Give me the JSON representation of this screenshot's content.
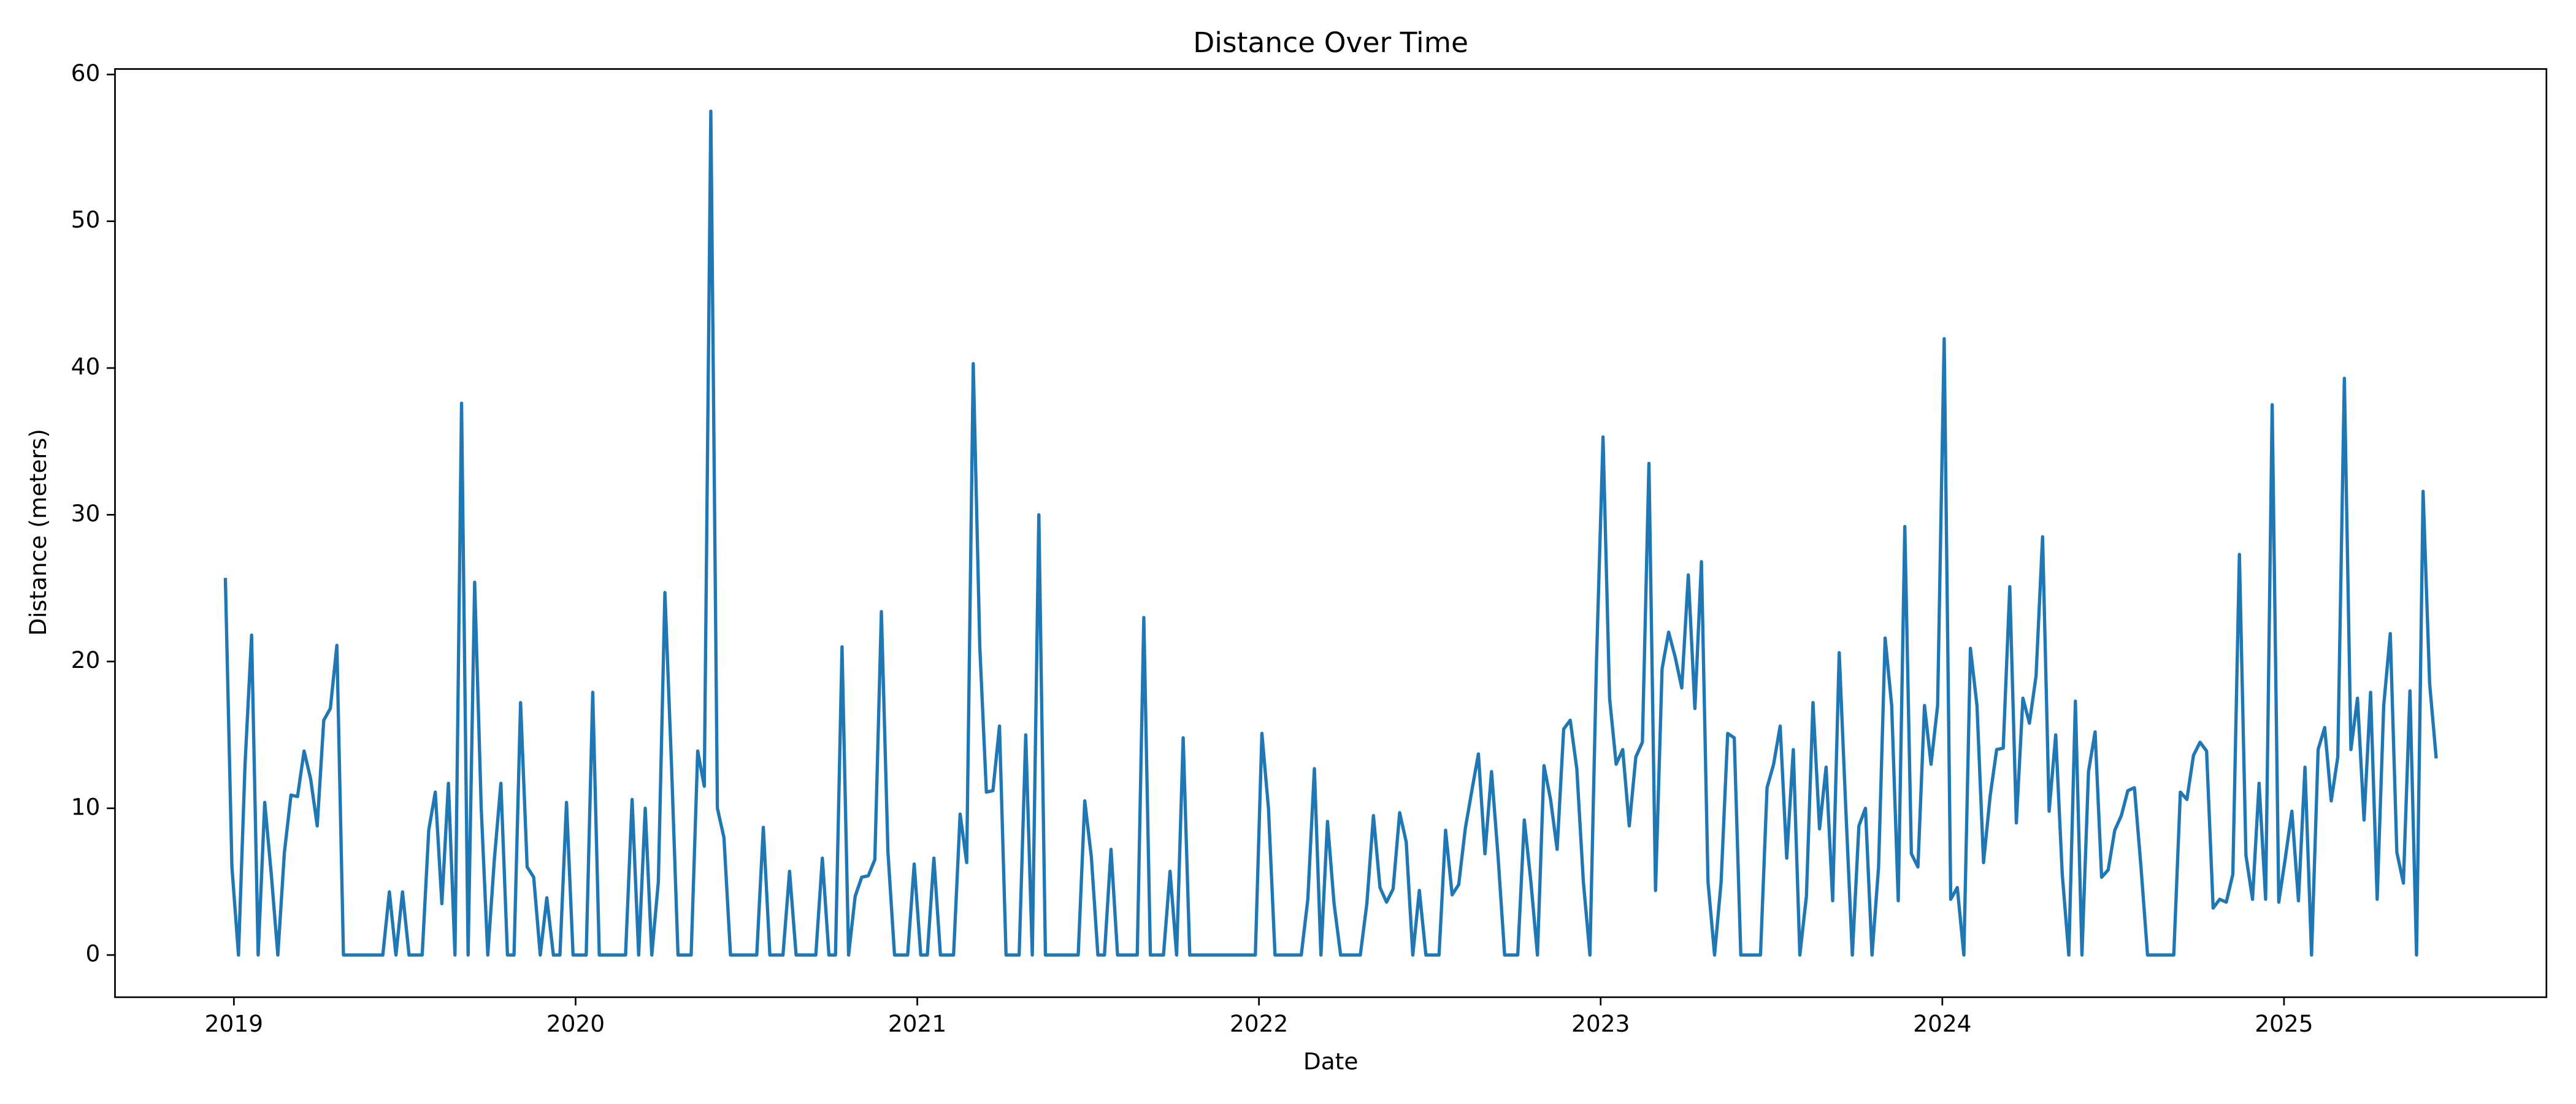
{
  "chart_data": {
    "type": "line",
    "title": "Distance Over Time",
    "x_label": "Date",
    "y_label": "Distance (meters)",
    "color": "#1f77b4",
    "x": [
      2018.975,
      2018.9942,
      2019.0134,
      2019.0326,
      2019.0518,
      2019.071,
      2019.0902,
      2019.1094,
      2019.1286,
      2019.1478,
      2019.167,
      2019.1862,
      2019.2054,
      2019.2246,
      2019.2438,
      2019.263,
      2019.2822,
      2019.3014,
      2019.3206,
      2019.3398,
      2019.359,
      2019.3782,
      2019.3974,
      2019.4166,
      2019.4358,
      2019.455,
      2019.4742,
      2019.4934,
      2019.5126,
      2019.5318,
      2019.551,
      2019.5702,
      2019.5894,
      2019.6086,
      2019.6278,
      2019.647,
      2019.6662,
      2019.6854,
      2019.7046,
      2019.7238,
      2019.743,
      2019.7622,
      2019.7814,
      2019.8006,
      2019.8198,
      2019.839,
      2019.8582,
      2019.8774,
      2019.8966,
      2019.9158,
      2019.935,
      2019.9542,
      2019.9734,
      2019.9926,
      2020.0118,
      2020.031,
      2020.0502,
      2020.0694,
      2020.0886,
      2020.1078,
      2020.127,
      2020.1462,
      2020.1654,
      2020.1846,
      2020.2038,
      2020.223,
      2020.2422,
      2020.2614,
      2020.2806,
      2020.2998,
      2020.319,
      2020.3382,
      2020.3574,
      2020.3766,
      2020.3958,
      2020.415,
      2020.4342,
      2020.4534,
      2020.4726,
      2020.4918,
      2020.511,
      2020.5302,
      2020.5494,
      2020.5686,
      2020.5878,
      2020.607,
      2020.6262,
      2020.6454,
      2020.6646,
      2020.6838,
      2020.703,
      2020.7222,
      2020.7414,
      2020.7606,
      2020.7798,
      2020.799,
      2020.8182,
      2020.8374,
      2020.8566,
      2020.8758,
      2020.895,
      2020.9142,
      2020.9334,
      2020.9526,
      2020.9718,
      2020.991,
      2021.0102,
      2021.0294,
      2021.0486,
      2021.0678,
      2021.087,
      2021.1062,
      2021.1254,
      2021.1446,
      2021.1638,
      2021.183,
      2021.2022,
      2021.2214,
      2021.2406,
      2021.2598,
      2021.279,
      2021.2982,
      2021.3174,
      2021.3366,
      2021.3558,
      2021.375,
      2021.3942,
      2021.4134,
      2021.4326,
      2021.4518,
      2021.471,
      2021.4902,
      2021.5094,
      2021.5286,
      2021.5478,
      2021.567,
      2021.5862,
      2021.6054,
      2021.6246,
      2021.6438,
      2021.663,
      2021.6822,
      2021.7014,
      2021.7206,
      2021.7398,
      2021.759,
      2021.7782,
      2021.7974,
      2021.8166,
      2021.8358,
      2021.855,
      2021.8742,
      2021.8934,
      2021.9126,
      2021.9318,
      2021.951,
      2021.9702,
      2021.9894,
      2022.0086,
      2022.0278,
      2022.047,
      2022.0662,
      2022.0854,
      2022.1046,
      2022.1238,
      2022.143,
      2022.1622,
      2022.1814,
      2022.2006,
      2022.2198,
      2022.239,
      2022.2582,
      2022.2774,
      2022.2966,
      2022.3158,
      2022.335,
      2022.3542,
      2022.3734,
      2022.3926,
      2022.4118,
      2022.431,
      2022.4502,
      2022.4694,
      2022.4886,
      2022.5078,
      2022.527,
      2022.5462,
      2022.5654,
      2022.5846,
      2022.6038,
      2022.623,
      2022.6422,
      2022.6614,
      2022.6806,
      2022.6998,
      2022.719,
      2022.7382,
      2022.7574,
      2022.7766,
      2022.7958,
      2022.815,
      2022.8342,
      2022.8534,
      2022.8726,
      2022.8918,
      2022.911,
      2022.9302,
      2022.9494,
      2022.9686,
      2022.9878,
      2023.007,
      2023.0262,
      2023.0454,
      2023.0646,
      2023.0838,
      2023.103,
      2023.1222,
      2023.1414,
      2023.1606,
      2023.1798,
      2023.199,
      2023.2182,
      2023.2374,
      2023.2566,
      2023.2758,
      2023.295,
      2023.3142,
      2023.3334,
      2023.3526,
      2023.3718,
      2023.391,
      2023.4102,
      2023.4294,
      2023.4486,
      2023.4678,
      2023.487,
      2023.5062,
      2023.5254,
      2023.5446,
      2023.5638,
      2023.583,
      2023.6022,
      2023.6214,
      2023.6406,
      2023.6598,
      2023.679,
      2023.6982,
      2023.7174,
      2023.7366,
      2023.7558,
      2023.775,
      2023.7942,
      2023.8134,
      2023.8326,
      2023.8518,
      2023.871,
      2023.8902,
      2023.9094,
      2023.9286,
      2023.9478,
      2023.967,
      2023.9862,
      2024.0054,
      2024.0246,
      2024.0438,
      2024.063,
      2024.0822,
      2024.1014,
      2024.1206,
      2024.1398,
      2024.159,
      2024.1782,
      2024.1974,
      2024.2166,
      2024.2358,
      2024.255,
      2024.2742,
      2024.2934,
      2024.3126,
      2024.3318,
      2024.351,
      2024.3702,
      2024.3894,
      2024.4086,
      2024.4278,
      2024.447,
      2024.4662,
      2024.4854,
      2024.5046,
      2024.5238,
      2024.543,
      2024.5622,
      2024.5814,
      2024.6006,
      2024.6198,
      2024.639,
      2024.6582,
      2024.6774,
      2024.6966,
      2024.7158,
      2024.735,
      2024.7542,
      2024.7734,
      2024.7926,
      2024.8118,
      2024.831,
      2024.8502,
      2024.8694,
      2024.8886,
      2024.9078,
      2024.927,
      2024.9462,
      2024.9654,
      2024.9846,
      2025.0038,
      2025.023,
      2025.0422,
      2025.0614,
      2025.0806,
      2025.0998,
      2025.119,
      2025.1382,
      2025.1574,
      2025.1766,
      2025.1958,
      2025.215,
      2025.2342,
      2025.2534,
      2025.2726,
      2025.2918,
      2025.311,
      2025.3302,
      2025.3494,
      2025.3686,
      2025.3878,
      2025.407,
      2025.4262,
      2025.4454
    ],
    "values": [
      25.7,
      6,
      0,
      13,
      21.8,
      0,
      10.4,
      5.5,
      0,
      7,
      10.9,
      10.8,
      13.9,
      12,
      8.8,
      16,
      16.8,
      21.1,
      0,
      0,
      0,
      0,
      0,
      0,
      0,
      4.3,
      0,
      4.3,
      0,
      0,
      0,
      8.5,
      11.1,
      3.5,
      11.7,
      0,
      37.6,
      0,
      25.4,
      10,
      0,
      6.5,
      11.7,
      0,
      0,
      17.2,
      6,
      5.3,
      0,
      3.9,
      0,
      0,
      10.4,
      0,
      0,
      0,
      17.9,
      0,
      0,
      0,
      0,
      0,
      10.6,
      0,
      10,
      0,
      5,
      24.7,
      13,
      0,
      0,
      0,
      13.9,
      11.5,
      57.5,
      10,
      8,
      0,
      0,
      0,
      0,
      0,
      8.7,
      0,
      0,
      0,
      5.7,
      0,
      0,
      0,
      0,
      6.6,
      0,
      0,
      21,
      0,
      4,
      5.3,
      5.4,
      6.5,
      23.4,
      7,
      0,
      0,
      0,
      6.2,
      0,
      0,
      6.6,
      0,
      0,
      0,
      9.6,
      6.3,
      40.3,
      21,
      11.1,
      11.2,
      15.6,
      0,
      0,
      0,
      15,
      0,
      30,
      0,
      0,
      0,
      0,
      0,
      0,
      10.5,
      6.7,
      0,
      0,
      7.2,
      0,
      0,
      0,
      0,
      23,
      0,
      0,
      0,
      5.7,
      0,
      14.8,
      0,
      0,
      0,
      0,
      0,
      0,
      0,
      0,
      0,
      0,
      0,
      15.1,
      10,
      0,
      0,
      0,
      0,
      0,
      3.8,
      12.7,
      0,
      9.1,
      3.5,
      0,
      0,
      0,
      0,
      3.5,
      9.5,
      4.6,
      3.6,
      4.5,
      9.7,
      7.7,
      0,
      4.4,
      0,
      0,
      0,
      8.5,
      4.1,
      4.8,
      8.6,
      11.2,
      13.7,
      6.9,
      12.5,
      6.7,
      0,
      0,
      0,
      9.2,
      5,
      0,
      12.9,
      10.6,
      7.2,
      15.4,
      16,
      12.7,
      5,
      0,
      20,
      35.3,
      17.5,
      13,
      14,
      8.8,
      13.5,
      14.5,
      33.5,
      4.4,
      19.5,
      22,
      20.3,
      18.2,
      25.9,
      16.8,
      26.8,
      5,
      0,
      5,
      15.1,
      14.8,
      0,
      0,
      0,
      0,
      11.4,
      13,
      15.6,
      6.6,
      14,
      0,
      4,
      17.2,
      8.6,
      12.8,
      3.7,
      20.6,
      10,
      0,
      8.8,
      10,
      0,
      6,
      21.6,
      17,
      3.7,
      29.2,
      6.9,
      6,
      17,
      13,
      17,
      42,
      3.8,
      4.6,
      0,
      20.9,
      17,
      6.3,
      10.8,
      14,
      14.1,
      25.1,
      9,
      17.5,
      15.8,
      19,
      28.5,
      9.8,
      15,
      5.5,
      0,
      17.3,
      0,
      12.5,
      15.2,
      5.3,
      5.8,
      8.5,
      9.5,
      11.2,
      11.4,
      6,
      0,
      0,
      0,
      0,
      0,
      11.1,
      10.6,
      13.6,
      14.5,
      13.9,
      3.2,
      3.8,
      3.6,
      5.5,
      27.3,
      6.8,
      3.8,
      11.7,
      3.8,
      37.5,
      3.6,
      6.6,
      9.8,
      3.7,
      12.8,
      0,
      14,
      15.5,
      10.5,
      13.5,
      39.3,
      14,
      17.5,
      9.2,
      17.9,
      3.8,
      17,
      21.9,
      7,
      4.9,
      18,
      0,
      31.6,
      18.5,
      13.4
    ],
    "xlim": [
      2018.652,
      2025.768
    ],
    "ylim": [
      -2.875,
      60.375
    ],
    "xticks": [
      2019,
      2020,
      2021,
      2022,
      2023,
      2024,
      2025
    ],
    "yticks": [
      0,
      10,
      20,
      30,
      40,
      50,
      60
    ],
    "grid": false
  }
}
